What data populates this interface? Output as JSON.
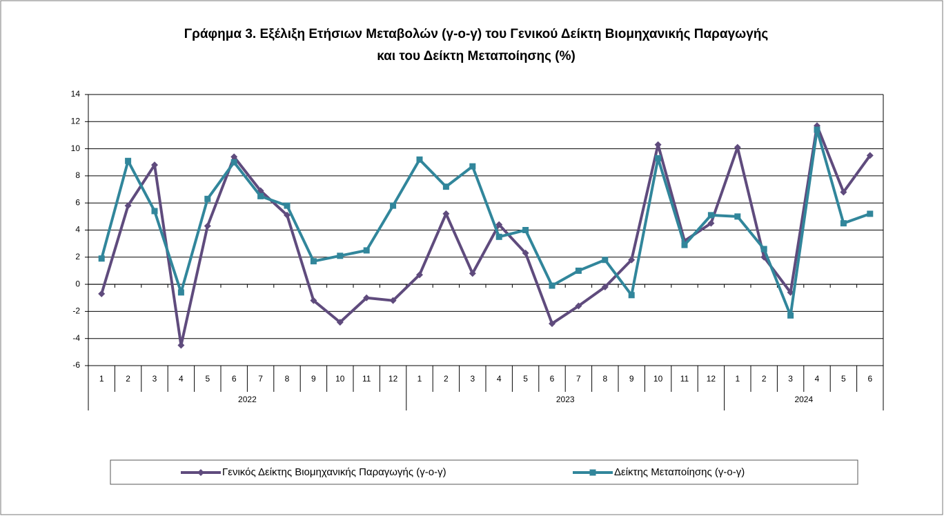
{
  "chart_data": {
    "type": "line",
    "title": [
      "Γράφημα 3. Εξέλιξη Ετήσιων Μεταβολών (γ-ο-γ) του Γενικού Δείκτη Βιομηχανικής Παραγωγής",
      "και του Δείκτη Μεταποίησης (%)"
    ],
    "groups": [
      {
        "label": "2022",
        "categories": [
          "1",
          "2",
          "3",
          "4",
          "5",
          "6",
          "7",
          "8",
          "9",
          "10",
          "11",
          "12"
        ]
      },
      {
        "label": "2023",
        "categories": [
          "1",
          "2",
          "3",
          "4",
          "5",
          "6",
          "7",
          "8",
          "9",
          "10",
          "11",
          "12"
        ]
      },
      {
        "label": "2024",
        "categories": [
          "1",
          "2",
          "3",
          "4",
          "5",
          "6"
        ]
      }
    ],
    "series": [
      {
        "name": "Γενικός Δείκτης Βιομηχανικής Παραγωγής (γ-ο-γ)",
        "color": "#5f4b7d",
        "marker": "diamond",
        "values": [
          -0.7,
          5.8,
          8.8,
          -4.5,
          4.3,
          9.4,
          6.9,
          5.1,
          -1.2,
          -2.8,
          -1.0,
          -1.2,
          0.7,
          5.2,
          0.8,
          4.4,
          2.3,
          -2.9,
          -1.6,
          -0.2,
          1.8,
          10.3,
          3.2,
          4.5,
          10.1,
          2.0,
          -0.6,
          11.7,
          6.8,
          9.5
        ]
      },
      {
        "name": "Δείκτης Μεταποίησης (γ-ο-γ)",
        "color": "#31869b",
        "marker": "square",
        "values": [
          1.9,
          9.1,
          5.4,
          -0.6,
          6.3,
          9.0,
          6.5,
          5.8,
          1.7,
          2.1,
          2.5,
          5.8,
          9.2,
          7.2,
          8.7,
          3.5,
          4.0,
          -0.1,
          1.0,
          1.8,
          -0.8,
          9.3,
          2.9,
          5.1,
          5.0,
          2.6,
          -2.3,
          11.4,
          4.5,
          5.2
        ]
      }
    ],
    "ylim": [
      -6,
      14
    ],
    "yticks": [
      -6,
      -4,
      -2,
      0,
      2,
      4,
      6,
      8,
      10,
      12,
      14
    ],
    "grid": true,
    "legend": "bottom"
  }
}
